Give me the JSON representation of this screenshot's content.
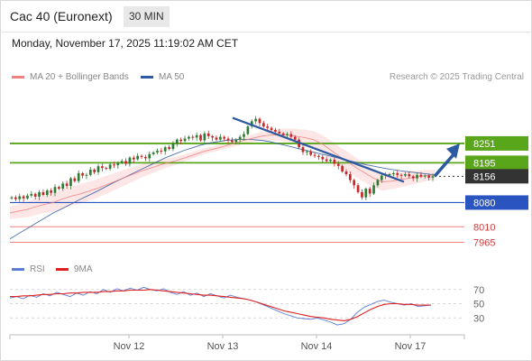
{
  "header": {
    "instrument": "Cac 40 (Euronext)",
    "timeframe": "30 MIN",
    "datetime": "Monday, November 17, 2025 11:19:02 AM CET"
  },
  "legend": {
    "ma20": {
      "label": "MA 20 + Bollinger Bands",
      "color": "#f08080"
    },
    "ma50": {
      "label": "MA 50",
      "color": "#2d5aa0"
    },
    "source": "Research © 2025 Trading Central"
  },
  "rsi_legend": {
    "rsi": {
      "label": "RSI",
      "color": "#5b7fd6"
    },
    "ma9": {
      "label": "9MA",
      "color": "#e02020"
    }
  },
  "colors": {
    "resistance": "#5aa61b",
    "pivot": "#2a55c0",
    "support": "#f08080",
    "current": "#333333",
    "arrow": "#2d5aa0",
    "bollinger_fill": "#fde3e3",
    "candle_up": "#2e7d32",
    "candle_down": "#c62828"
  },
  "chart_data": [
    {
      "type": "candlestick",
      "instrument": "Cac 40 (Euronext)",
      "interval": "30 MIN",
      "x_ticks": [
        "Nov 12",
        "Nov 13",
        "Nov 14",
        "Nov 17"
      ],
      "ylim": [
        7935,
        8410
      ],
      "levels": [
        {
          "value": 8251,
          "label": "8251",
          "kind": "resistance"
        },
        {
          "value": 8195,
          "label": "8195",
          "kind": "resistance"
        },
        {
          "value": 8156,
          "label": "8156",
          "kind": "current"
        },
        {
          "value": 8080,
          "label": "8080",
          "kind": "pivot"
        },
        {
          "value": 8010,
          "label": "8010",
          "kind": "support"
        },
        {
          "value": 7965,
          "label": "7965",
          "kind": "support"
        }
      ],
      "candles_close": [
        8095,
        8090,
        8098,
        8092,
        8100,
        8105,
        8097,
        8110,
        8102,
        8115,
        8108,
        8125,
        8120,
        8135,
        8128,
        8150,
        8142,
        8165,
        8158,
        8160,
        8175,
        8168,
        8185,
        8180,
        8178,
        8190,
        8188,
        8195,
        8200,
        8192,
        8210,
        8205,
        8215,
        8212,
        8208,
        8220,
        8225,
        8230,
        8228,
        8240,
        8235,
        8250,
        8262,
        8258,
        8265,
        8270,
        8268,
        8275,
        8260,
        8280,
        8272,
        8268,
        8262,
        8270,
        8265,
        8260,
        8255,
        8262,
        8270,
        8278,
        8300,
        8315,
        8322,
        8310,
        8300,
        8296,
        8290,
        8285,
        8280,
        8275,
        8278,
        8270,
        8262,
        8240,
        8226,
        8228,
        8218,
        8215,
        8212,
        8205,
        8200,
        8204,
        8192,
        8186,
        8170,
        8162,
        8145,
        8130,
        8110,
        8095,
        8120,
        8106,
        8130,
        8145,
        8158,
        8160,
        8162,
        8165,
        8160,
        8158,
        8162,
        8156,
        8150,
        8160,
        8155,
        8158,
        8152,
        8156
      ],
      "ma20": [
        8050,
        8055,
        8060,
        8068,
        8075,
        8080,
        8090,
        8098,
        8104,
        8112,
        8120,
        8130,
        8140,
        8150,
        8160,
        8170,
        8178,
        8186,
        8194,
        8200,
        8208,
        8216,
        8225,
        8232,
        8238,
        8245,
        8252,
        8260,
        8266,
        8272,
        8275,
        8276,
        8275,
        8272,
        8268,
        8262,
        8250,
        8232,
        8214,
        8198,
        8180,
        8165,
        8150,
        8140,
        8142,
        8146,
        8150,
        8154,
        8158,
        8160
      ],
      "ma50": [
        7975,
        7990,
        8005,
        8020,
        8035,
        8050,
        8062,
        8075,
        8088,
        8100,
        8112,
        8125,
        8138,
        8150,
        8162,
        8174,
        8186,
        8198,
        8210,
        8220,
        8230,
        8238,
        8246,
        8252,
        8256,
        8260,
        8262,
        8263,
        8262,
        8260,
        8256,
        8250,
        8244,
        8238,
        8232,
        8226,
        8220,
        8214,
        8208,
        8202,
        8196,
        8190,
        8185,
        8180,
        8176,
        8172,
        8169,
        8166,
        8163,
        8160
      ],
      "trendline": {
        "from": 8325,
        "to": 8140
      },
      "projection": {
        "from": 8156,
        "to": 8251
      }
    },
    {
      "type": "line",
      "title": "RSI",
      "y_ticks": [
        70,
        50,
        30
      ],
      "ylim": [
        10,
        90
      ],
      "series": [
        {
          "name": "RSI",
          "values": [
            58,
            60,
            57,
            62,
            59,
            64,
            61,
            66,
            63,
            60,
            65,
            62,
            67,
            64,
            70,
            66,
            71,
            68,
            72,
            69,
            73,
            70,
            68,
            71,
            66,
            63,
            67,
            62,
            65,
            60,
            64,
            61,
            58,
            62,
            59,
            57,
            55,
            52,
            48,
            44,
            40,
            36,
            33,
            30,
            29,
            28,
            30,
            27,
            24,
            20,
            22,
            28,
            38,
            45,
            49,
            53,
            55,
            52,
            50,
            48,
            50,
            46,
            47,
            48
          ]
        },
        {
          "name": "9MA",
          "values": [
            60,
            60,
            61,
            61,
            62,
            63,
            63,
            64,
            64,
            65,
            65,
            66,
            66,
            66,
            67,
            67,
            68,
            68,
            69,
            69,
            69,
            70,
            69,
            68,
            67,
            66,
            65,
            64,
            63,
            62,
            62,
            61,
            60,
            59,
            58,
            57,
            55,
            52,
            49,
            46,
            43,
            40,
            38,
            36,
            34,
            32,
            31,
            30,
            28,
            27,
            26,
            28,
            32,
            37,
            42,
            46,
            49,
            50,
            50,
            49,
            49,
            48,
            48,
            48
          ]
        }
      ]
    }
  ]
}
